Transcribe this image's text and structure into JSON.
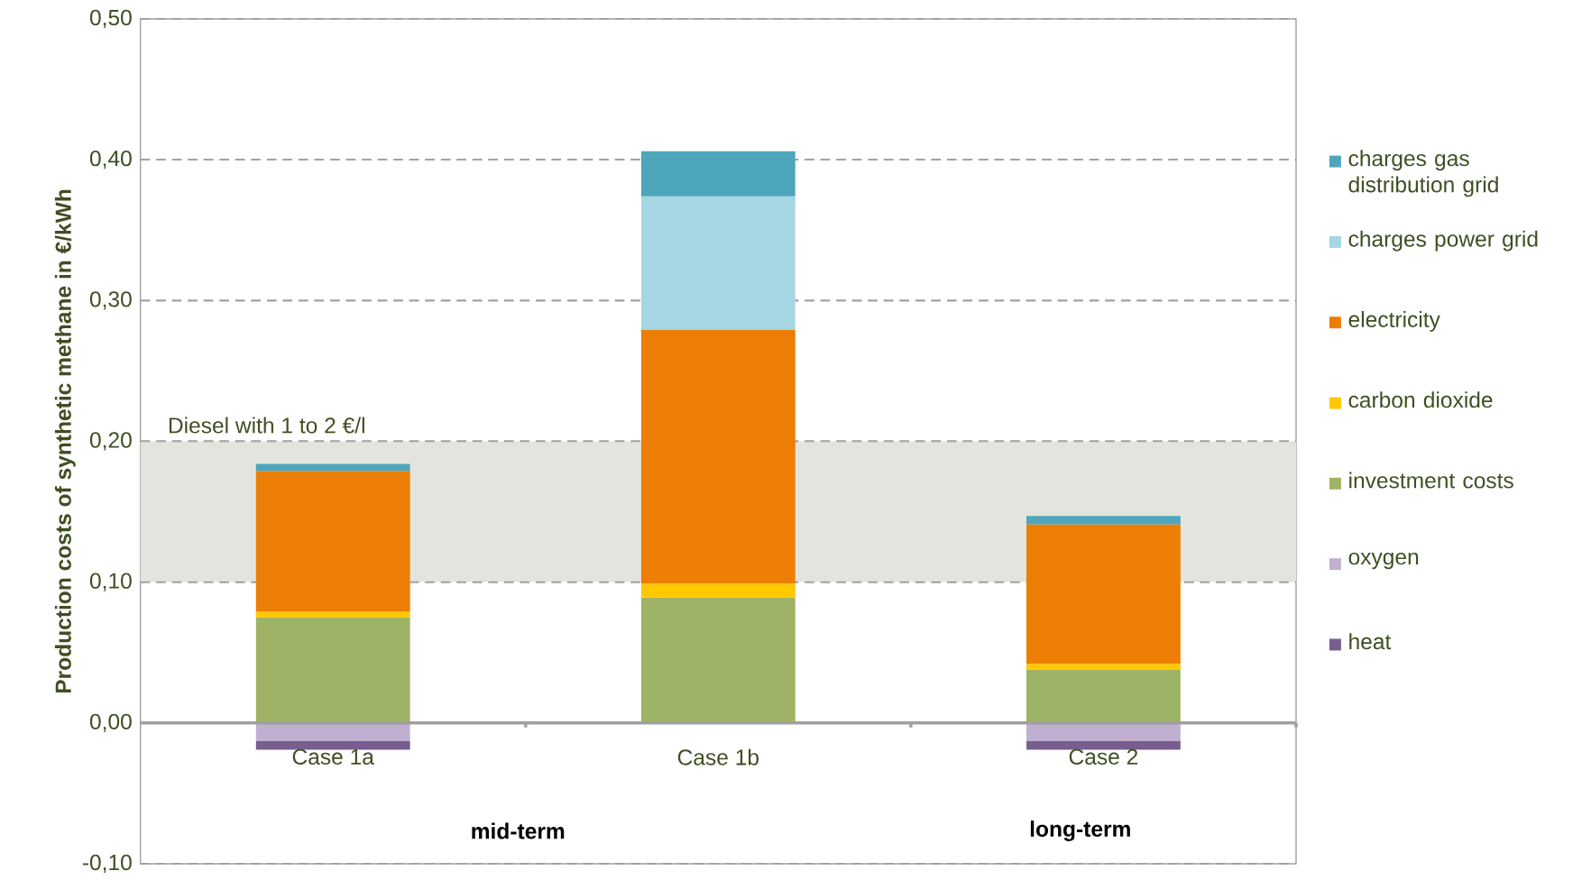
{
  "chart_data": {
    "type": "bar",
    "stacked": true,
    "ylabel": "Production costs of synthetic methane in €/kWh",
    "categories": [
      "Case 1a",
      "Case 1b",
      "Case 2"
    ],
    "series": [
      {
        "name": "investment costs",
        "color": "#9fb366",
        "values": [
          0.075,
          0.089,
          0.038
        ]
      },
      {
        "name": "carbon dioxide",
        "color": "#ffc800",
        "values": [
          0.004,
          0.01,
          0.004
        ]
      },
      {
        "name": "electricity",
        "color": "#ec7e05",
        "values": [
          0.1,
          0.18,
          0.099
        ]
      },
      {
        "name": "charges power grid",
        "color": "#a5d6e3",
        "values": [
          null,
          0.095,
          null
        ]
      },
      {
        "name": "charges gas distribution grid",
        "color": "#4ea6bc",
        "values": [
          0.005,
          0.032,
          0.006
        ]
      },
      {
        "name": "oxygen",
        "color": "#c0afd1",
        "values": [
          -0.013,
          null,
          -0.013
        ]
      },
      {
        "name": "heat",
        "color": "#775e8e",
        "values": [
          -0.006,
          null,
          -0.006
        ]
      }
    ],
    "ylim": [
      -0.1,
      0.5
    ],
    "yticks": [
      {
        "value": -0.1,
        "label": "-0,10"
      },
      {
        "value": 0,
        "label": "0,00"
      },
      {
        "value": 0.1,
        "label": "0,10"
      },
      {
        "value": 0.2,
        "label": "0,20"
      },
      {
        "value": 0.3,
        "label": "0,30"
      },
      {
        "value": 0.4,
        "label": "0,40"
      },
      {
        "value": 0.5,
        "label": "0,50"
      }
    ],
    "grid": "y",
    "legend": "right",
    "bands": [
      {
        "axis": "y",
        "from": 0.1,
        "to": 0.2,
        "label": "Diesel with 1 to 2 €/l",
        "color": "#e4e4df"
      }
    ],
    "annotations": [
      "mid-term",
      "long-term"
    ]
  }
}
